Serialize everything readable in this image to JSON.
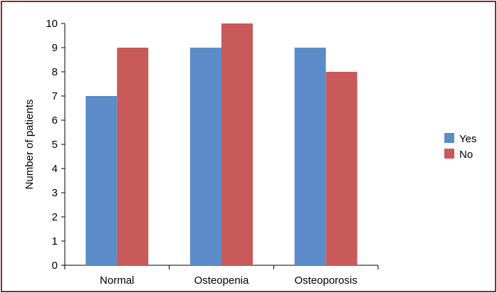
{
  "chart_data": {
    "type": "bar",
    "title": "",
    "xlabel": "",
    "ylabel": "Number of patients",
    "categories": [
      "Normal",
      "Osteopenia",
      "Osteoporosis"
    ],
    "series": [
      {
        "name": "Yes",
        "values": [
          7,
          9,
          9
        ],
        "color": "#5b8cc9"
      },
      {
        "name": "No",
        "values": [
          9,
          10,
          8
        ],
        "color": "#c85a5a"
      }
    ],
    "ylim": [
      0,
      10
    ],
    "yticks": [
      "0",
      "1",
      "2",
      "3",
      "4",
      "5",
      "6",
      "7",
      "8",
      "9",
      "10"
    ],
    "grid": false,
    "legend_position": "right"
  },
  "colors": {
    "border": "#8b2a2a"
  }
}
